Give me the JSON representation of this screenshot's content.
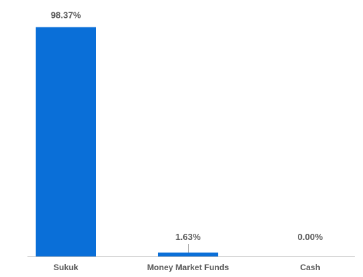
{
  "chart_data": {
    "type": "bar",
    "title": "",
    "xlabel": "",
    "ylabel": "",
    "categories": [
      "Sukuk",
      "Money Market Funds",
      "Cash"
    ],
    "values": [
      98.37,
      1.63,
      0.0
    ],
    "data_labels": [
      "98.37%",
      "1.63%",
      "0.00%"
    ],
    "ylim": [
      0,
      100
    ],
    "grid": false,
    "legend": "none",
    "bar_color": "#0a6fd8"
  }
}
